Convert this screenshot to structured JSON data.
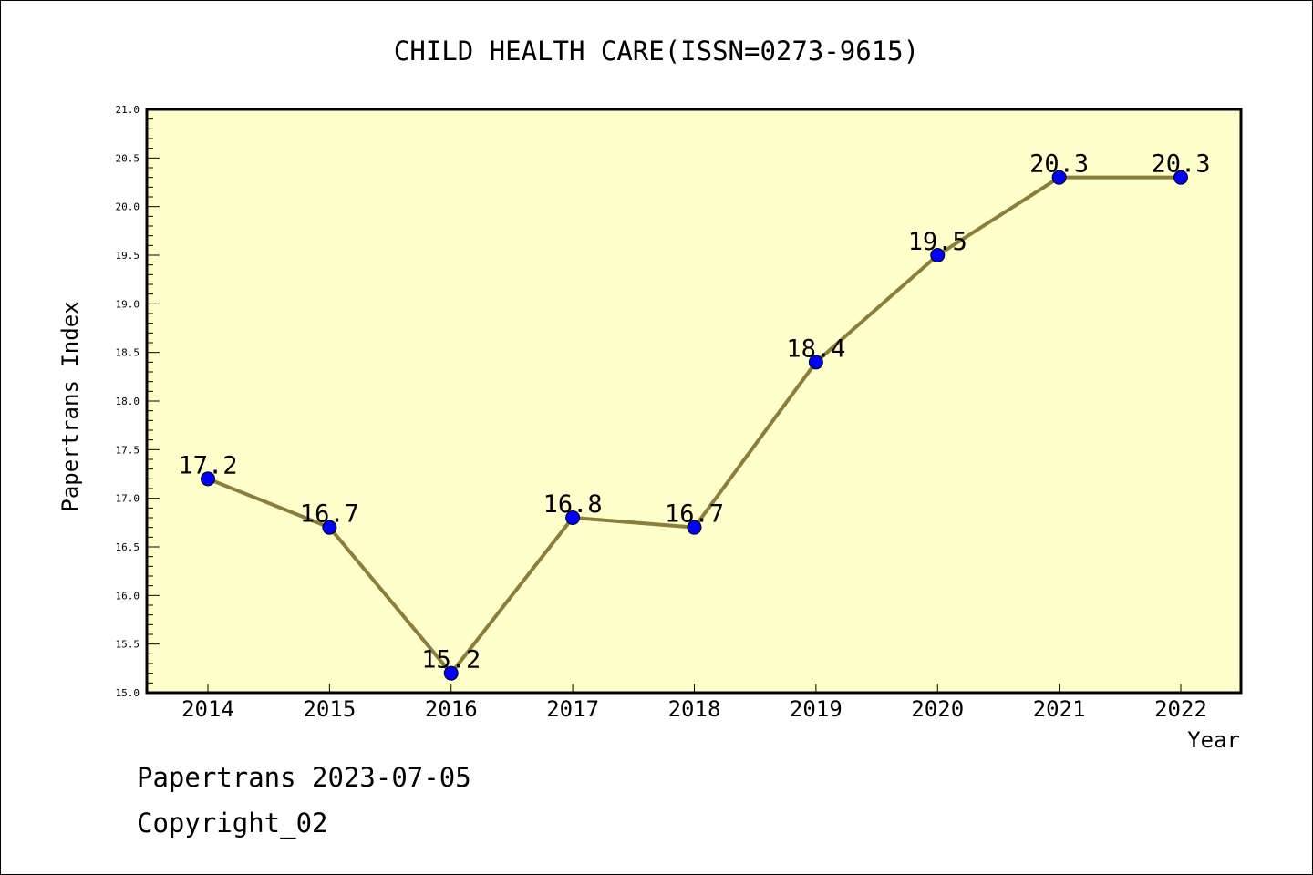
{
  "footer": {
    "line1": "Papertrans 2023-07-05",
    "line2": "Copyright_02"
  },
  "colors": {
    "plot_background": "#ffffcc",
    "line": "#8b7d3a",
    "marker": "#0000ff"
  },
  "chart_data": {
    "type": "line",
    "title": "CHILD HEALTH CARE(ISSN=0273-9615)",
    "xlabel": "Year",
    "ylabel": "Papertrans Index",
    "ylim": [
      15.0,
      21.0
    ],
    "yticks": [
      "15.0",
      "15.5",
      "16.0",
      "16.5",
      "17.0",
      "17.5",
      "18.0",
      "18.5",
      "19.0",
      "19.5",
      "20.0",
      "20.5",
      "21.0"
    ],
    "categories": [
      "2014",
      "2015",
      "2016",
      "2017",
      "2018",
      "2019",
      "2020",
      "2021",
      "2022"
    ],
    "series": [
      {
        "values": [
          17.2,
          16.7,
          15.2,
          16.8,
          16.7,
          18.4,
          19.5,
          20.3,
          20.3
        ],
        "data_labels": [
          "17.2",
          "16.7",
          "15.2",
          "16.8",
          "16.7",
          "18.4",
          "19.5",
          "20.3",
          "20.3"
        ]
      }
    ],
    "grid": false,
    "legend": "none"
  }
}
